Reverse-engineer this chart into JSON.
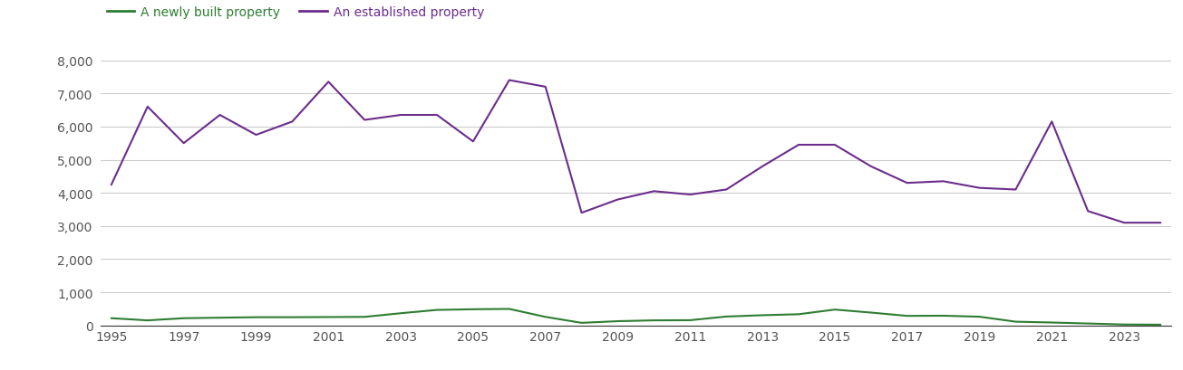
{
  "years": [
    1995,
    1996,
    1997,
    1998,
    1999,
    2000,
    2001,
    2002,
    2003,
    2004,
    2005,
    2006,
    2007,
    2008,
    2009,
    2010,
    2011,
    2012,
    2013,
    2014,
    2015,
    2016,
    2017,
    2018,
    2019,
    2020,
    2021,
    2022,
    2023,
    2024
  ],
  "established": [
    4250,
    6600,
    5500,
    6350,
    5750,
    6150,
    7350,
    6200,
    6350,
    6350,
    5550,
    7400,
    7200,
    3400,
    3800,
    4050,
    3950,
    4100,
    4800,
    5450,
    5450,
    4800,
    4300,
    4350,
    4150,
    4100,
    6150,
    3450,
    3100,
    3100
  ],
  "new_build": [
    220,
    155,
    220,
    235,
    250,
    250,
    255,
    260,
    370,
    470,
    490,
    500,
    260,
    80,
    130,
    155,
    160,
    270,
    310,
    340,
    480,
    390,
    290,
    295,
    265,
    115,
    90,
    60,
    30,
    25
  ],
  "established_color": "#6b2d8b",
  "new_build_color": "#2e7d32",
  "background_color": "#ffffff",
  "ylim": [
    0,
    8500
  ],
  "yticks": [
    0,
    1000,
    2000,
    3000,
    4000,
    5000,
    6000,
    7000,
    8000
  ],
  "ytick_labels": [
    "0",
    "1,000",
    "2,000",
    "3,000",
    "4,000",
    "5,000",
    "6,000",
    "7,000",
    "8,000"
  ],
  "xtick_years": [
    1995,
    1997,
    1999,
    2001,
    2003,
    2005,
    2007,
    2009,
    2011,
    2013,
    2015,
    2017,
    2019,
    2021,
    2023
  ],
  "legend_new": "A newly built property",
  "legend_established": "An established property",
  "line_width": 1.5,
  "grid_color": "#cccccc",
  "tick_label_color": "#555555",
  "axis_line_color": "#333333"
}
